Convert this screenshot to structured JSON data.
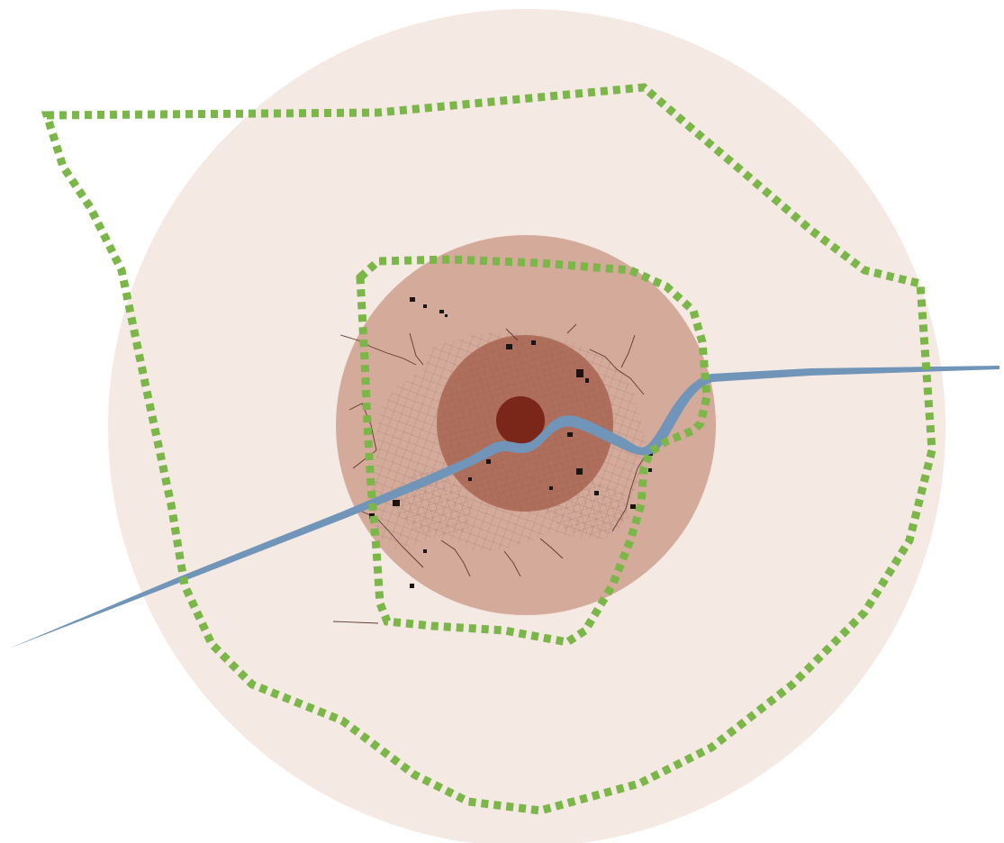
{
  "map": {
    "colors": {
      "background": "#ffffff",
      "outer_zone": "#f5e9e3",
      "middle_zone": "#d4aa9b",
      "inner_zone": "#a86551",
      "core_zone": "#7a2618",
      "river": "#7195b8",
      "greenbelt": "#7ab648",
      "urban_fabric": "#6b4c43",
      "roads": "#5c3a30"
    },
    "layers": [
      "outer-zone",
      "middle-zone",
      "inner-zone",
      "core-zone",
      "urban-fabric",
      "river",
      "outer-greenbelt",
      "inner-greenbelt"
    ]
  }
}
